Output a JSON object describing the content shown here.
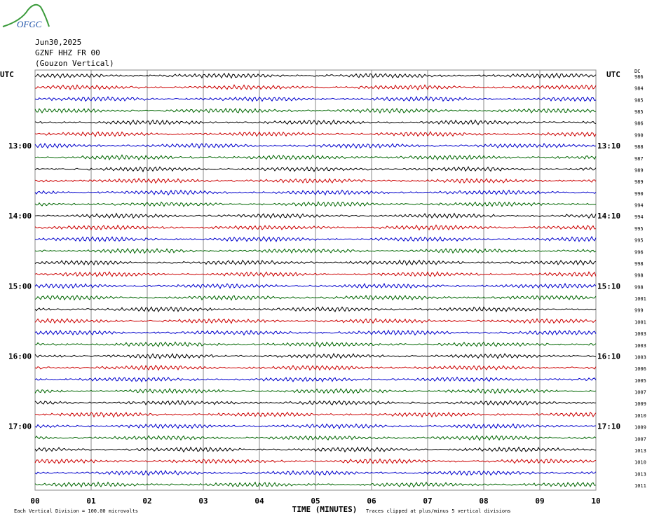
{
  "logo": "OFGC",
  "chart_data": {
    "type": "helicorder",
    "title": [
      "Jun30,2025",
      "GZNF HHZ FR 00",
      "(Gouzon Vertical)"
    ],
    "left_axis_label": "UTC",
    "right_axis_label": "UTC",
    "dc_label": "DC",
    "xlabel": "TIME (MINUTES)",
    "footer_left": "Each Vertical Division =  100.00 microvolts",
    "footer_right": "Traces clipped at plus/minus 5 vertical divisions",
    "xlim": [
      0,
      10
    ],
    "xticks": [
      {
        "value": 0,
        "label": "00"
      },
      {
        "value": 1,
        "label": "01"
      },
      {
        "value": 2,
        "label": "02"
      },
      {
        "value": 3,
        "label": "03"
      },
      {
        "value": 4,
        "label": "04"
      },
      {
        "value": 5,
        "label": "05"
      },
      {
        "value": 6,
        "label": "06"
      },
      {
        "value": 7,
        "label": "07"
      },
      {
        "value": 8,
        "label": "08"
      },
      {
        "value": 9,
        "label": "09"
      },
      {
        "value": 10,
        "label": "10"
      }
    ],
    "trace_colors": [
      "#000000",
      "#cc0000",
      "#0000cc",
      "#006600"
    ],
    "left_labels": [
      null,
      null,
      null,
      null,
      null,
      null,
      "13:00",
      null,
      null,
      null,
      null,
      null,
      "14:00",
      null,
      null,
      null,
      null,
      null,
      "15:00",
      null,
      null,
      null,
      null,
      null,
      "16:00",
      null,
      null,
      null,
      null,
      null,
      "17:00",
      null,
      null,
      null,
      null,
      null
    ],
    "right_labels": [
      null,
      null,
      null,
      null,
      null,
      null,
      "13:10",
      null,
      null,
      null,
      null,
      null,
      "14:10",
      null,
      null,
      null,
      null,
      null,
      "15:10",
      null,
      null,
      null,
      null,
      null,
      "16:10",
      null,
      null,
      null,
      null,
      null,
      "17:10",
      null,
      null,
      null,
      null,
      null
    ],
    "dc": [
      986,
      984,
      985,
      985,
      986,
      990,
      988,
      987,
      989,
      989,
      990,
      994,
      994,
      995,
      995,
      996,
      998,
      998,
      998,
      1001,
      999,
      1001,
      1003,
      1003,
      1003,
      1006,
      1005,
      1007,
      1009,
      1010,
      1009,
      1007,
      1013,
      1010,
      1013,
      1011
    ]
  }
}
